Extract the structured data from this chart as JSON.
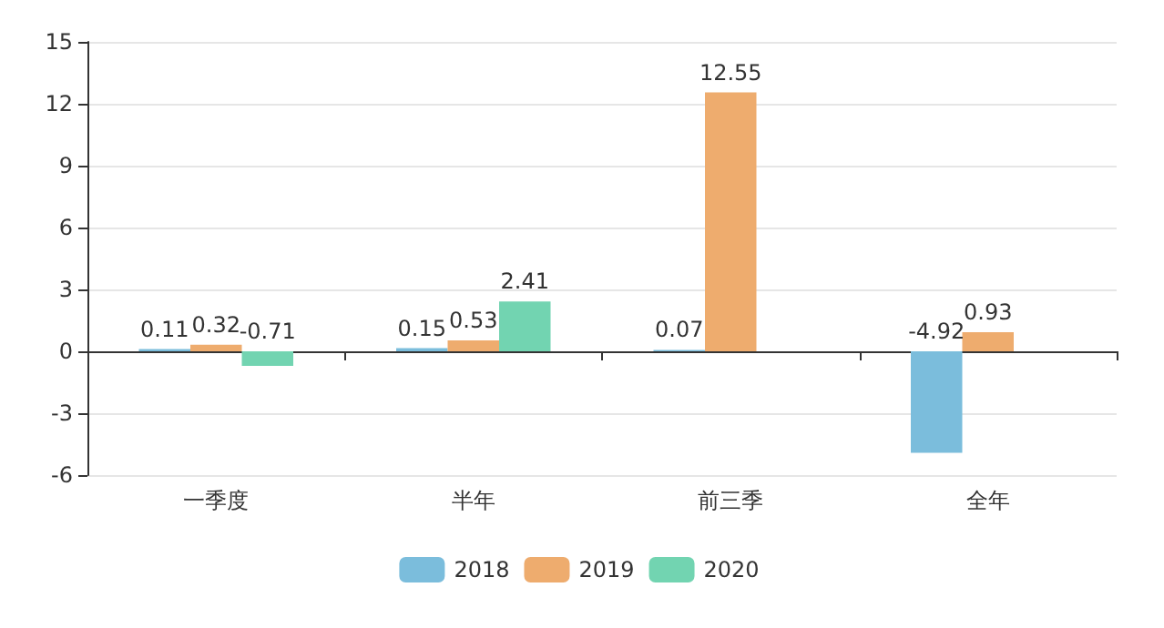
{
  "chart_data": {
    "type": "bar",
    "categories": [
      "一季度",
      "半年",
      "前三季",
      "全年"
    ],
    "series": [
      {
        "name": "2018",
        "color": "#7bbddc",
        "values": [
          0.11,
          0.15,
          0.07,
          -4.92
        ]
      },
      {
        "name": "2019",
        "color": "#eeac6e",
        "values": [
          0.32,
          0.53,
          12.55,
          0.93
        ]
      },
      {
        "name": "2020",
        "color": "#72d4b1",
        "values": [
          -0.71,
          2.41,
          null,
          null
        ]
      }
    ],
    "ylim": [
      -6,
      15
    ],
    "yticks": [
      -6,
      -3,
      0,
      3,
      6,
      9,
      12,
      15
    ],
    "grid": "y",
    "legend": "bottom",
    "data_labels": true
  }
}
